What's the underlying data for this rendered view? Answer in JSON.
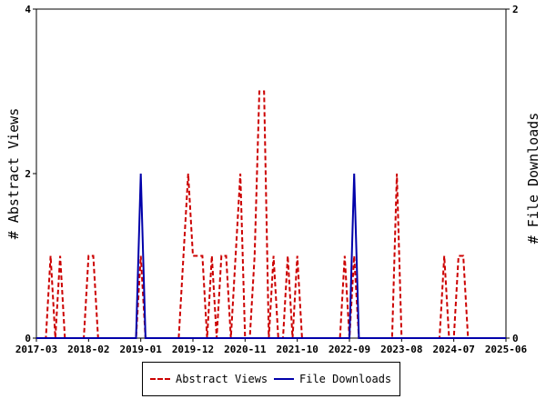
{
  "chart_data": {
    "type": "line",
    "x_tick_labels": [
      "2017-03",
      "2018-02",
      "2019-01",
      "2019-12",
      "2020-11",
      "2021-10",
      "2022-09",
      "2023-08",
      "2024-07",
      "2025-06"
    ],
    "y_left": {
      "label": "# Abstract Views",
      "range": [
        0,
        4
      ],
      "ticks": [
        "0",
        "2",
        "4"
      ]
    },
    "y_right": {
      "label": "# File Downloads",
      "range": [
        0,
        2
      ],
      "ticks": [
        "0",
        "2"
      ]
    },
    "grid": false,
    "legend_placement": "bottom",
    "series": [
      {
        "name": "Abstract Views",
        "axis": "left",
        "color": "#cc0000",
        "dash": "dashed",
        "points": [
          [
            "2017-03",
            0
          ],
          [
            "2017-05",
            0
          ],
          [
            "2017-06",
            1
          ],
          [
            "2017-07",
            0
          ],
          [
            "2017-08",
            1
          ],
          [
            "2017-09",
            0
          ],
          [
            "2018-01",
            0
          ],
          [
            "2018-02",
            1
          ],
          [
            "2018-03",
            1
          ],
          [
            "2018-04",
            0
          ],
          [
            "2018-12",
            0
          ],
          [
            "2019-01",
            1
          ],
          [
            "2019-02",
            0
          ],
          [
            "2019-09",
            0
          ],
          [
            "2019-10",
            1
          ],
          [
            "2019-11",
            2
          ],
          [
            "2019-12",
            1
          ],
          [
            "2020-01",
            1
          ],
          [
            "2020-02",
            1
          ],
          [
            "2020-03",
            0
          ],
          [
            "2020-04",
            1
          ],
          [
            "2020-05",
            0
          ],
          [
            "2020-06",
            1
          ],
          [
            "2020-07",
            1
          ],
          [
            "2020-08",
            0
          ],
          [
            "2020-09",
            1
          ],
          [
            "2020-10",
            2
          ],
          [
            "2020-11",
            0
          ],
          [
            "2020-12",
            0
          ],
          [
            "2021-01",
            1
          ],
          [
            "2021-02",
            3
          ],
          [
            "2021-03",
            3
          ],
          [
            "2021-04",
            0
          ],
          [
            "2021-05",
            1
          ],
          [
            "2021-06",
            0
          ],
          [
            "2021-07",
            0
          ],
          [
            "2021-08",
            1
          ],
          [
            "2021-09",
            0
          ],
          [
            "2021-10",
            1
          ],
          [
            "2021-11",
            0
          ],
          [
            "2022-07",
            0
          ],
          [
            "2022-08",
            1
          ],
          [
            "2022-09",
            0
          ],
          [
            "2022-10",
            1
          ],
          [
            "2022-11",
            0
          ],
          [
            "2023-05",
            0
          ],
          [
            "2023-06",
            0
          ],
          [
            "2023-07",
            2
          ],
          [
            "2023-08",
            0
          ],
          [
            "2024-04",
            0
          ],
          [
            "2024-05",
            1
          ],
          [
            "2024-06",
            0
          ],
          [
            "2024-07",
            0
          ],
          [
            "2024-08",
            1
          ],
          [
            "2024-09",
            1
          ],
          [
            "2024-10",
            0
          ],
          [
            "2025-06",
            0
          ]
        ]
      },
      {
        "name": "File Downloads",
        "axis": "right",
        "color": "#0000aa",
        "dash": "solid",
        "points": [
          [
            "2017-03",
            0
          ],
          [
            "2018-12",
            0
          ],
          [
            "2019-01",
            1
          ],
          [
            "2019-02",
            0
          ],
          [
            "2022-09",
            0
          ],
          [
            "2022-10",
            1
          ],
          [
            "2022-11",
            0
          ],
          [
            "2025-06",
            0
          ]
        ]
      }
    ]
  }
}
